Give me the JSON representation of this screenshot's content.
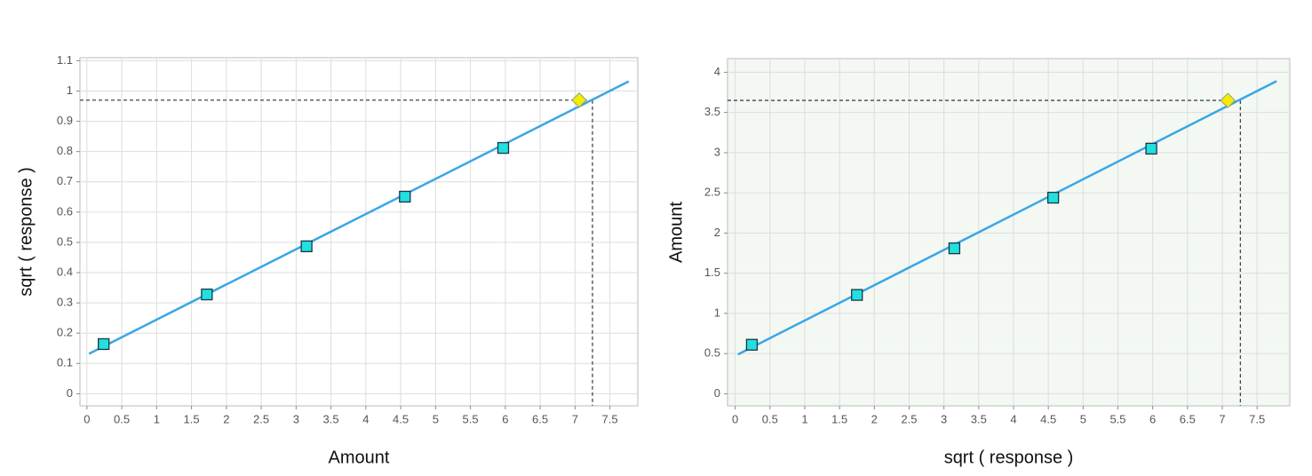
{
  "chart_data": [
    {
      "type": "scatter",
      "x_label": "Amount",
      "y_label": "sqrt ( response )",
      "x": [
        0.24,
        1.72,
        3.15,
        4.56,
        5.97
      ],
      "values": [
        0.164,
        0.328,
        0.487,
        0.651,
        0.812
      ],
      "color": "#20e0e0",
      "background": "#ffffff",
      "fit": {
        "x": [
          0.03,
          7.77
        ],
        "values": [
          0.132,
          1.032
        ],
        "color": "#3aa6e6"
      },
      "highlight": {
        "x": 7.06,
        "value": 0.97,
        "color": "#f2ee00"
      },
      "crosshair_x": 7.25,
      "xlim": [
        -0.1,
        7.9
      ],
      "ylim": [
        -0.04,
        1.11
      ],
      "xticks": [
        0,
        0.5,
        1,
        1.5,
        2,
        2.5,
        3,
        3.5,
        4,
        4.5,
        5,
        5.5,
        6,
        6.5,
        7,
        7.5
      ],
      "yticks": [
        0,
        0.1,
        0.2,
        0.3,
        0.4,
        0.5,
        0.6,
        0.7,
        0.8,
        0.9,
        1,
        1.1
      ],
      "grid": true
    },
    {
      "type": "scatter",
      "x_label": "sqrt ( response )",
      "y_label": "Amount",
      "x": [
        0.24,
        1.75,
        3.15,
        4.57,
        5.98
      ],
      "values": [
        0.61,
        1.23,
        1.81,
        2.44,
        3.05
      ],
      "color": "#20e0e0",
      "background": "#f3f8f3",
      "fit": {
        "x": [
          0.04,
          7.78
        ],
        "values": [
          0.49,
          3.89
        ],
        "color": "#3aa6e6"
      },
      "highlight": {
        "x": 7.08,
        "value": 3.65,
        "color": "#f2ee00"
      },
      "crosshair_x": 7.26,
      "xlim": [
        -0.11,
        7.97
      ],
      "ylim": [
        -0.15,
        4.17
      ],
      "xticks": [
        0,
        0.5,
        1,
        1.5,
        2,
        2.5,
        3,
        3.5,
        4,
        4.5,
        5,
        5.5,
        6,
        6.5,
        7,
        7.5
      ],
      "yticks": [
        0,
        0.5,
        1,
        1.5,
        2,
        2.5,
        3,
        3.5,
        4
      ],
      "grid": true
    }
  ]
}
